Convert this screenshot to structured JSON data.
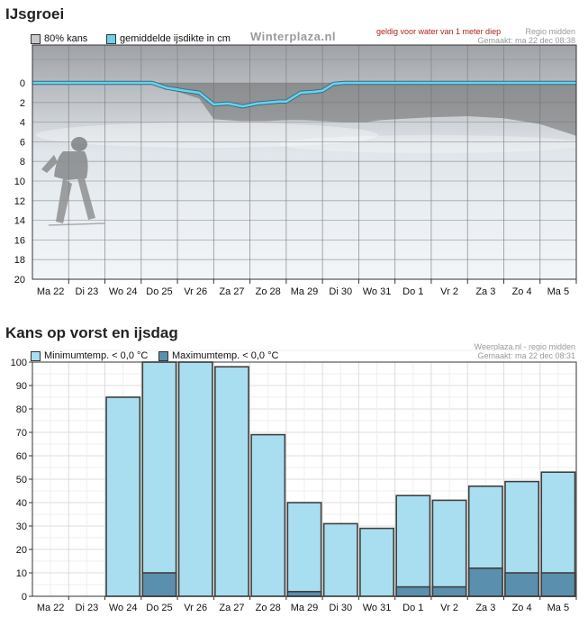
{
  "charts": {
    "ice": {
      "title": "IJsgroei",
      "legend": [
        {
          "label": "80% kans",
          "color": "#c8c8c8"
        },
        {
          "label": "gemiddelde ijsdikte in cm",
          "color": "#6fd0e8"
        }
      ],
      "brand": "Winterplaza.nl",
      "note_red": "geldig voor water van 1 meter diep",
      "note_region": "Regio midden",
      "note_made": "Gemaakt: ma 22 dec 08:38"
    },
    "frost": {
      "title": "Kans op vorst en ijsdag",
      "legend": [
        {
          "label": "Minimumtemp. < 0,0 °C",
          "color": "#a8def0"
        },
        {
          "label": "Maximumtemp. < 0,0 °C",
          "color": "#5b8fae"
        }
      ],
      "note_region": "Weerplaza.nl - regio midden",
      "note_made": "Gemaakt: ma 22 dec 08:31"
    }
  },
  "chart_data": [
    {
      "type": "area",
      "title": "IJsgroei",
      "categories": [
        "Ma 22",
        "Di 23",
        "Wo 24",
        "Do 25",
        "Vr 26",
        "Za 27",
        "Zo 28",
        "Ma 29",
        "Di 30",
        "Wo 31",
        "Do 1",
        "Vr 2",
        "Za 3",
        "Zo 4",
        "Ma 5"
      ],
      "x_range": [
        0,
        15
      ],
      "ylim": [
        0,
        20
      ],
      "y_inverted": true,
      "yticks": [
        0,
        2,
        4,
        6,
        8,
        10,
        12,
        14,
        16,
        18,
        20
      ],
      "series": [
        {
          "name": "80% kans",
          "color": "#6a6a6a",
          "x": [
            0,
            3.4,
            4.0,
            4.6,
            5.0,
            5.8,
            6.4,
            7.0,
            7.5,
            8.0,
            8.6,
            9.2,
            9.6,
            10.0,
            11.0,
            12.0,
            13.0,
            14.0,
            15.0
          ],
          "values": [
            0,
            0,
            0.9,
            1.6,
            3.7,
            3.9,
            3.9,
            3.8,
            3.8,
            3.9,
            4.0,
            4.0,
            3.8,
            3.7,
            3.5,
            3.4,
            3.6,
            4.2,
            5.4
          ]
        },
        {
          "name": "gemiddelde ijsdikte in cm",
          "color": "#6fd0e8",
          "x": [
            0,
            3.3,
            3.7,
            4.2,
            4.6,
            4.8,
            5.0,
            5.4,
            5.8,
            6.2,
            6.8,
            7.0,
            7.4,
            7.8,
            8.0,
            8.3,
            8.6,
            8.8,
            9.0,
            15.0
          ],
          "values": [
            0,
            0,
            0.5,
            0.8,
            1.0,
            1.6,
            2.2,
            2.1,
            2.4,
            2.1,
            1.9,
            1.9,
            1.0,
            0.9,
            0.8,
            0.1,
            0,
            0,
            0,
            0
          ]
        }
      ]
    },
    {
      "type": "bar",
      "title": "Kans op vorst en ijsdag",
      "categories": [
        "Ma 22",
        "Di 23",
        "Wo 24",
        "Do 25",
        "Vr 26",
        "Za 27",
        "Zo 28",
        "Ma 29",
        "Di 30",
        "Wo 31",
        "Do 1",
        "Vr 2",
        "Za 3",
        "Zo 4",
        "Ma 5"
      ],
      "ylim": [
        0,
        100
      ],
      "yticks": [
        0,
        10,
        20,
        30,
        40,
        50,
        60,
        70,
        80,
        90,
        100
      ],
      "grid": true,
      "series": [
        {
          "name": "Minimumtemp. < 0,0 °C",
          "color": "#a8def0",
          "values": [
            0,
            0,
            85,
            100,
            100,
            98,
            69,
            40,
            31,
            29,
            43,
            41,
            47,
            49,
            53
          ]
        },
        {
          "name": "Maximumtemp. < 0,0 °C",
          "color": "#5b8fae",
          "values": [
            0,
            0,
            0,
            10,
            0,
            0,
            0,
            2,
            0,
            0,
            4,
            4,
            12,
            10,
            10
          ]
        }
      ]
    }
  ]
}
